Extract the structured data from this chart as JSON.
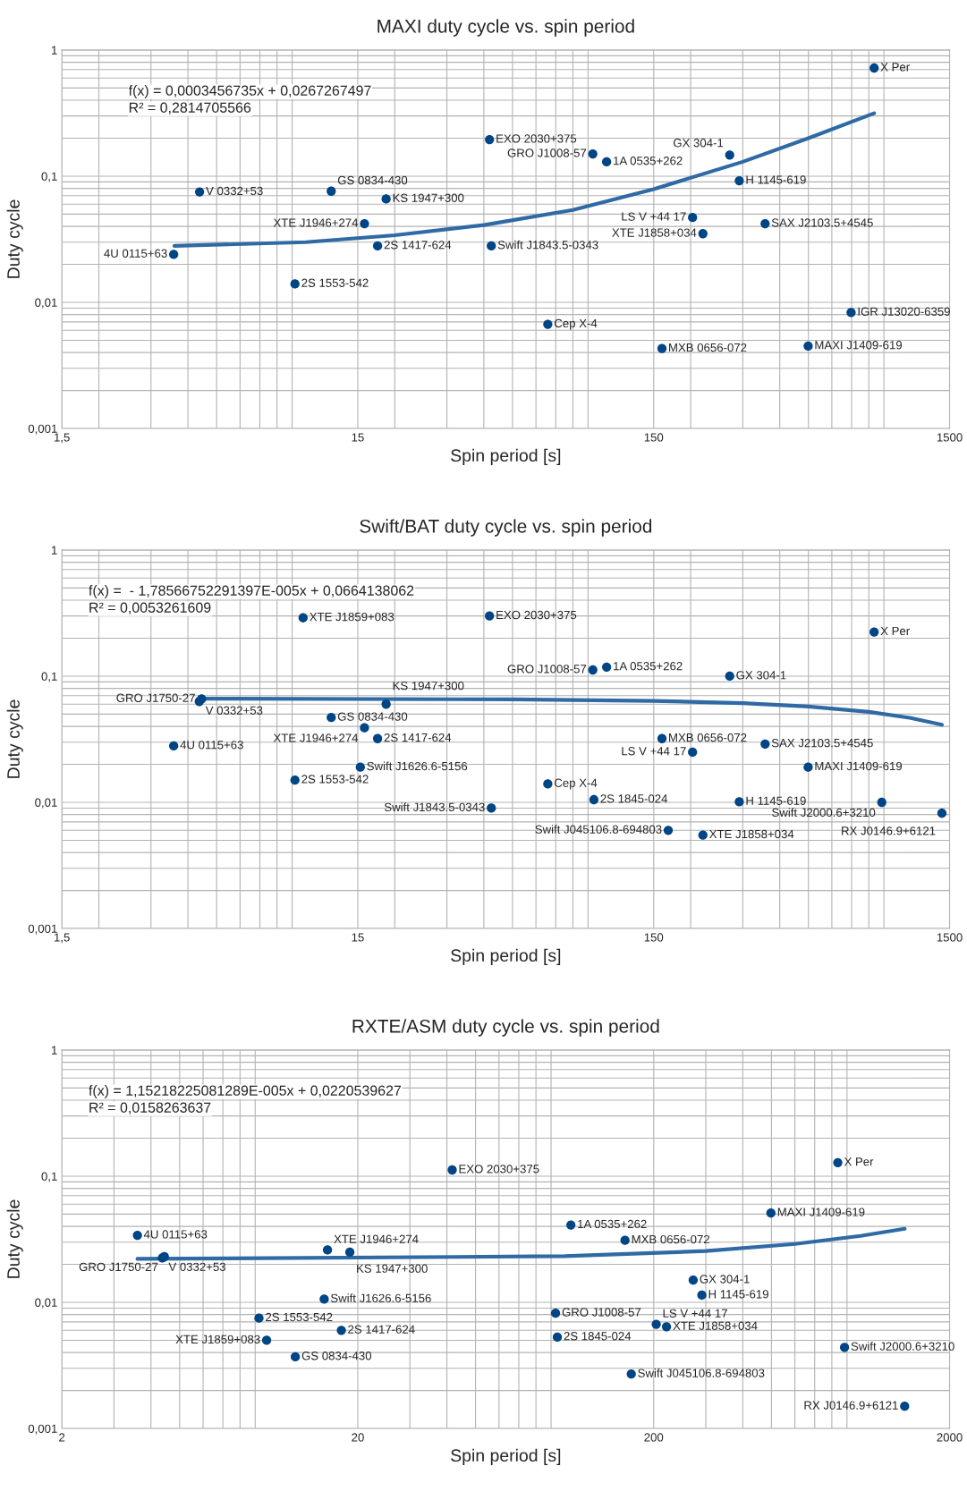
{
  "chart_data": [
    {
      "type": "scatter",
      "title": "MAXI duty cycle vs. spin period",
      "xlabel": "Spin period [s]",
      "ylabel": "Duty cycle",
      "log": "xy",
      "grid": true,
      "xlim": [
        1.5,
        1500
      ],
      "xticks": [
        {
          "value": 1.5,
          "label": "1,5"
        },
        15,
        150,
        1500
      ],
      "ylim": [
        0.001,
        1
      ],
      "yticks": [
        {
          "value": 0.001,
          "label": "0,001"
        },
        {
          "value": 0.01,
          "label": "0,01"
        },
        {
          "value": 0.1,
          "label": "0,1"
        },
        1
      ],
      "series": [
        {
          "color": "#004586",
          "marker": "circle",
          "x": [
            834,
            41.8,
            93.4,
            104,
            271,
            292,
            4.38,
            12.2,
            18.7,
            15.8,
            203,
            357,
            220,
            42.4,
            17.5,
            3.58,
            9.2,
            65.8,
            697,
            160,
            499
          ],
          "values": [
            0.72,
            0.195,
            0.15,
            0.13,
            0.147,
            0.092,
            0.075,
            0.076,
            0.066,
            0.042,
            0.047,
            0.042,
            0.035,
            0.028,
            0.028,
            0.024,
            0.014,
            0.0067,
            0.0083,
            0.0043,
            0.0045
          ]
        },
        {
          "type": "line",
          "color": "#2f6aa5",
          "line_style": "solid",
          "x": [
            3.6,
            10,
            20,
            40,
            80,
            150,
            300,
            500,
            834
          ],
          "values": [
            0.028,
            0.03,
            0.034,
            0.041,
            0.054,
            0.079,
            0.13,
            0.2,
            0.315
          ]
        }
      ],
      "annotations": [
        "f(x) = 0,0003456735x + 0,0267267497",
        "R² = 0,2814705566",
        {
          "text": "X Per",
          "x": 834,
          "y": 0.72
        },
        {
          "text": "EXO 2030+375",
          "x": 41.8,
          "y": 0.195
        },
        {
          "text": "GRO J1008-57",
          "x": 93.4,
          "y": 0.15
        },
        {
          "text": "1A 0535+262",
          "x": 104,
          "y": 0.13
        },
        {
          "text": "GX 304-1",
          "x": 271,
          "y": 0.147
        },
        {
          "text": "H 1145-619",
          "x": 292,
          "y": 0.092
        },
        {
          "text": "V 0332+53",
          "x": 4.38,
          "y": 0.075
        },
        {
          "text": "GS 0834-430",
          "x": 12.2,
          "y": 0.076
        },
        {
          "text": "KS 1947+300",
          "x": 18.7,
          "y": 0.066
        },
        {
          "text": "XTE J1946+274",
          "x": 15.8,
          "y": 0.042
        },
        {
          "text": "LS V +44 17",
          "x": 203,
          "y": 0.047
        },
        {
          "text": "SAX J2103.5+4545",
          "x": 357,
          "y": 0.042
        },
        {
          "text": "XTE J1858+034",
          "x": 220,
          "y": 0.035
        },
        {
          "text": "Swift J1843.5-0343",
          "x": 42.4,
          "y": 0.028
        },
        {
          "text": "2S 1417-624",
          "x": 17.5,
          "y": 0.028
        },
        {
          "text": "4U 0115+63",
          "x": 3.58,
          "y": 0.024
        },
        {
          "text": "2S 1553-542",
          "x": 9.2,
          "y": 0.014
        },
        {
          "text": "Cep X-4",
          "x": 65.8,
          "y": 0.0067
        },
        {
          "text": "IGR J13020-6359",
          "x": 697,
          "y": 0.0083
        },
        {
          "text": "MXB 0656-072",
          "x": 160,
          "y": 0.0043
        },
        {
          "text": "MAXI J1409-619",
          "x": 499,
          "y": 0.0045
        }
      ]
    },
    {
      "type": "scatter",
      "title": "Swift/BAT duty cycle vs. spin period",
      "xlabel": "Spin period [s]",
      "ylabel": "Duty cycle",
      "log": "xy",
      "grid": true,
      "xlim": [
        1.5,
        1500
      ],
      "xticks": [
        {
          "value": 1.5,
          "label": "1,5"
        },
        15,
        150,
        1500
      ],
      "ylim": [
        0.001,
        1
      ],
      "yticks": [
        {
          "value": 0.001,
          "label": "0,001"
        },
        {
          "value": 0.01,
          "label": "0,01"
        },
        {
          "value": 0.1,
          "label": "0,1"
        },
        1
      ],
      "series": [
        {
          "color": "#004586",
          "marker": "circle",
          "x": [
            9.8,
            41.8,
            834,
            4.45,
            4.37,
            93.4,
            104,
            271,
            12.2,
            18.7,
            15.8,
            17.5,
            3.58,
            160,
            203,
            357,
            499,
            15.3,
            9.2,
            65.8,
            94.2,
            292,
            885,
            1413,
            42.4,
            168,
            220
          ],
          "values": [
            0.29,
            0.3,
            0.224,
            0.066,
            0.063,
            0.112,
            0.118,
            0.1,
            0.047,
            0.06,
            0.039,
            0.032,
            0.028,
            0.032,
            0.025,
            0.029,
            0.019,
            0.019,
            0.015,
            0.014,
            0.0105,
            0.0101,
            0.01,
            0.0082,
            0.009,
            0.006,
            0.0055
          ]
        },
        {
          "type": "line",
          "color": "#2f6aa5",
          "line_style": "solid",
          "x": [
            4.4,
            50,
            150,
            300,
            500,
            800,
            1100,
            1413
          ],
          "values": [
            0.0663,
            0.0655,
            0.0637,
            0.0611,
            0.0575,
            0.0521,
            0.0468,
            0.0412
          ]
        }
      ],
      "annotations": [
        "f(x) =  - 1,78566752291397E-005x + 0,0664138062",
        "R² = 0,0053261609",
        {
          "text": "XTE J1859+083",
          "x": 9.8,
          "y": 0.29
        },
        {
          "text": "EXO 2030+375",
          "x": 41.8,
          "y": 0.3
        },
        {
          "text": "X Per",
          "x": 834,
          "y": 0.224
        },
        {
          "text": "GRO J1750-27",
          "x": 4.45,
          "y": 0.066
        },
        {
          "text": "V 0332+53",
          "x": 4.37,
          "y": 0.063
        },
        {
          "text": "GRO J1008-57",
          "x": 93.4,
          "y": 0.112
        },
        {
          "text": "1A 0535+262",
          "x": 104,
          "y": 0.118
        },
        {
          "text": "GX 304-1",
          "x": 271,
          "y": 0.1
        },
        {
          "text": "GS 0834-430",
          "x": 12.2,
          "y": 0.047
        },
        {
          "text": "KS 1947+300",
          "x": 18.7,
          "y": 0.06
        },
        {
          "text": "XTE J1946+274",
          "x": 15.8,
          "y": 0.039
        },
        {
          "text": "2S 1417-624",
          "x": 17.5,
          "y": 0.032
        },
        {
          "text": "4U 0115+63",
          "x": 3.58,
          "y": 0.028
        },
        {
          "text": "MXB 0656-072",
          "x": 160,
          "y": 0.032
        },
        {
          "text": "LS V +44 17",
          "x": 203,
          "y": 0.025
        },
        {
          "text": "SAX J2103.5+4545",
          "x": 357,
          "y": 0.029
        },
        {
          "text": "MAXI J1409-619",
          "x": 499,
          "y": 0.019
        },
        {
          "text": "Swift J1626.6-5156",
          "x": 15.3,
          "y": 0.019
        },
        {
          "text": "2S 1553-542",
          "x": 9.2,
          "y": 0.015
        },
        {
          "text": "Cep X-4",
          "x": 65.8,
          "y": 0.014
        },
        {
          "text": "2S 1845-024",
          "x": 94.2,
          "y": 0.0105
        },
        {
          "text": "H 1145-619",
          "x": 292,
          "y": 0.0101
        },
        {
          "text": "Swift J2000.6+3210",
          "x": 885,
          "y": 0.01
        },
        {
          "text": "RX J0146.9+6121",
          "x": 1413,
          "y": 0.0082
        },
        {
          "text": "Swift J1843.5-0343",
          "x": 42.4,
          "y": 0.009
        },
        {
          "text": "Swift J045106.8-694803",
          "x": 168,
          "y": 0.006
        },
        {
          "text": "XTE J1858+034",
          "x": 220,
          "y": 0.0055
        }
      ]
    },
    {
      "type": "scatter",
      "title": "RXTE/ASM duty cycle vs. spin period",
      "xlabel": "Spin period [s]",
      "ylabel": "Duty cycle",
      "log": "xy",
      "grid": true,
      "xlim": [
        2,
        2000
      ],
      "xticks": [
        2,
        20,
        200,
        2000
      ],
      "ylim": [
        0.001,
        1
      ],
      "yticks": [
        {
          "value": 0.001,
          "label": "0,001"
        },
        {
          "value": 0.01,
          "label": "0,01"
        },
        {
          "value": 0.1,
          "label": "0,1"
        },
        1
      ],
      "series": [
        {
          "color": "#004586",
          "marker": "circle",
          "x": [
            41.7,
            838,
            498,
            105,
            3.6,
            160,
            15.8,
            18.8,
            4.44,
            4.37,
            272,
            291,
            15.4,
            93.2,
            9.27,
            204,
            221,
            17.6,
            94.5,
            9.84,
            883,
            12.3,
            168,
            1410
          ],
          "values": [
            0.112,
            0.128,
            0.051,
            0.041,
            0.034,
            0.031,
            0.026,
            0.025,
            0.023,
            0.0225,
            0.015,
            0.0114,
            0.0106,
            0.0082,
            0.0075,
            0.0067,
            0.0064,
            0.006,
            0.0053,
            0.005,
            0.0044,
            0.0037,
            0.0027,
            0.0015
          ]
        },
        {
          "type": "line",
          "color": "#2f6aa5",
          "line_style": "solid",
          "x": [
            3.6,
            100,
            300,
            600,
            1000,
            1410
          ],
          "values": [
            0.0221,
            0.0232,
            0.0255,
            0.029,
            0.0336,
            0.0383
          ]
        }
      ],
      "annotations": [
        "f(x) = 1,15218225081289E-005x + 0,0220539627",
        "R² = 0,0158263637",
        {
          "text": "EXO 2030+375",
          "x": 41.7,
          "y": 0.112
        },
        {
          "text": "X Per",
          "x": 838,
          "y": 0.128
        },
        {
          "text": "MAXI J1409-619",
          "x": 498,
          "y": 0.051
        },
        {
          "text": "1A 0535+262",
          "x": 105,
          "y": 0.041
        },
        {
          "text": "4U 0115+63",
          "x": 3.6,
          "y": 0.034
        },
        {
          "text": "MXB 0656-072",
          "x": 160,
          "y": 0.031
        },
        {
          "text": "XTE J1946+274",
          "x": 15.8,
          "y": 0.026
        },
        {
          "text": "KS 1947+300",
          "x": 18.8,
          "y": 0.025
        },
        {
          "text": "GRO J1750-27",
          "x": 4.44,
          "y": 0.023
        },
        {
          "text": "V 0332+53",
          "x": 4.37,
          "y": 0.0225
        },
        {
          "text": "GX 304-1",
          "x": 272,
          "y": 0.015
        },
        {
          "text": "H 1145-619",
          "x": 291,
          "y": 0.0114
        },
        {
          "text": "Swift J1626.6-5156",
          "x": 15.4,
          "y": 0.0106
        },
        {
          "text": "GRO J1008-57",
          "x": 93.2,
          "y": 0.0082
        },
        {
          "text": "2S 1553-542",
          "x": 9.27,
          "y": 0.0075
        },
        {
          "text": "LS V +44 17",
          "x": 204,
          "y": 0.0067
        },
        {
          "text": "XTE J1858+034",
          "x": 221,
          "y": 0.0064
        },
        {
          "text": "2S 1417-624",
          "x": 17.6,
          "y": 0.006
        },
        {
          "text": "2S 1845-024",
          "x": 94.5,
          "y": 0.0053
        },
        {
          "text": "XTE J1859+083",
          "x": 9.84,
          "y": 0.005
        },
        {
          "text": "Swift J2000.6+3210",
          "x": 883,
          "y": 0.0044
        },
        {
          "text": "GS 0834-430",
          "x": 12.3,
          "y": 0.0037
        },
        {
          "text": "Swift J045106.8-694803",
          "x": 168,
          "y": 0.0027
        },
        {
          "text": "RX J0146.9+6121",
          "x": 1410,
          "y": 0.0015
        }
      ]
    }
  ]
}
